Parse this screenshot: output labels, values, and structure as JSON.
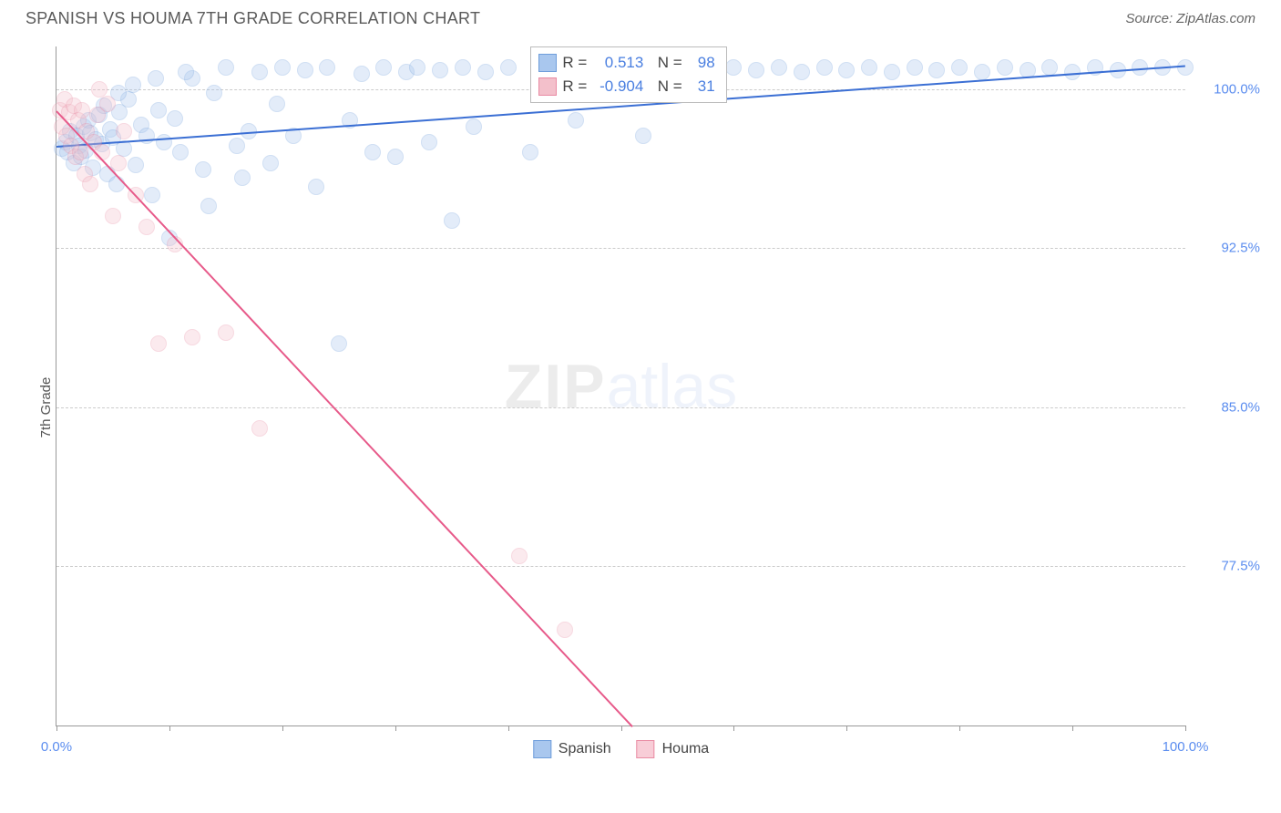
{
  "title": "SPANISH VS HOUMA 7TH GRADE CORRELATION CHART",
  "source": "Source: ZipAtlas.com",
  "ylabel": "7th Grade",
  "watermark_zip": "ZIP",
  "watermark_atlas": "atlas",
  "chart": {
    "type": "scatter",
    "background_color": "#ffffff",
    "grid_color": "#cccccc",
    "axis_color": "#999999",
    "label_color": "#5b8def",
    "xlim": [
      0,
      100
    ],
    "ylim": [
      70,
      102
    ],
    "x_ticks": [
      0,
      10,
      20,
      30,
      40,
      50,
      60,
      70,
      80,
      90,
      100
    ],
    "x_tick_labels": {
      "0": "0.0%",
      "100": "100.0%"
    },
    "y_gridlines": [
      77.5,
      85.0,
      92.5,
      100.0
    ],
    "y_tick_labels": {
      "77.5": "77.5%",
      "85.0": "85.0%",
      "92.5": "92.5%",
      "100.0": "100.0%"
    },
    "marker_radius": 9,
    "marker_opacity": 0.32,
    "series": [
      {
        "name": "Spanish",
        "color_fill": "#a9c7ee",
        "color_stroke": "#6f9edb",
        "trend_color": "#3b6fd4",
        "R": "0.513",
        "N": "98",
        "trend": {
          "x1": 0,
          "y1": 97.3,
          "x2": 100,
          "y2": 101.1
        },
        "points": [
          [
            0.5,
            97.2
          ],
          [
            0.8,
            97.5
          ],
          [
            1.0,
            97.0
          ],
          [
            1.2,
            98.0
          ],
          [
            1.5,
            96.5
          ],
          [
            1.8,
            97.8
          ],
          [
            2.0,
            97.3
          ],
          [
            2.2,
            96.8
          ],
          [
            2.4,
            98.2
          ],
          [
            2.6,
            97.1
          ],
          [
            2.8,
            98.5
          ],
          [
            3.0,
            97.9
          ],
          [
            3.2,
            96.3
          ],
          [
            3.5,
            97.6
          ],
          [
            3.8,
            98.8
          ],
          [
            4.0,
            97.4
          ],
          [
            4.2,
            99.2
          ],
          [
            4.5,
            96.0
          ],
          [
            4.8,
            98.1
          ],
          [
            5.0,
            97.7
          ],
          [
            5.3,
            95.5
          ],
          [
            5.6,
            98.9
          ],
          [
            6.0,
            97.2
          ],
          [
            6.4,
            99.5
          ],
          [
            7.0,
            96.4
          ],
          [
            7.5,
            98.3
          ],
          [
            8.0,
            97.8
          ],
          [
            8.5,
            95.0
          ],
          [
            9.0,
            99.0
          ],
          [
            9.5,
            97.5
          ],
          [
            10.0,
            93.0
          ],
          [
            10.5,
            98.6
          ],
          [
            11.0,
            97.0
          ],
          [
            12.0,
            100.5
          ],
          [
            13.0,
            96.2
          ],
          [
            14.0,
            99.8
          ],
          [
            15.0,
            101.0
          ],
          [
            16.0,
            97.3
          ],
          [
            17.0,
            98.0
          ],
          [
            18.0,
            100.8
          ],
          [
            19.0,
            96.5
          ],
          [
            20.0,
            101.0
          ],
          [
            21.0,
            97.8
          ],
          [
            22.0,
            100.9
          ],
          [
            23.0,
            95.4
          ],
          [
            24.0,
            101.0
          ],
          [
            25.0,
            88.0
          ],
          [
            26.0,
            98.5
          ],
          [
            27.0,
            100.7
          ],
          [
            28.0,
            97.0
          ],
          [
            29.0,
            101.0
          ],
          [
            30.0,
            96.8
          ],
          [
            31.0,
            100.8
          ],
          [
            32.0,
            101.0
          ],
          [
            33.0,
            97.5
          ],
          [
            34.0,
            100.9
          ],
          [
            35.0,
            93.8
          ],
          [
            36.0,
            101.0
          ],
          [
            37.0,
            98.2
          ],
          [
            38.0,
            100.8
          ],
          [
            40.0,
            101.0
          ],
          [
            42.0,
            97.0
          ],
          [
            44.0,
            100.9
          ],
          [
            46.0,
            98.5
          ],
          [
            48.0,
            101.0
          ],
          [
            50.0,
            100.8
          ],
          [
            52.0,
            97.8
          ],
          [
            54.0,
            101.0
          ],
          [
            56.0,
            100.9
          ],
          [
            58.0,
            100.8
          ],
          [
            60.0,
            101.0
          ],
          [
            62.0,
            100.9
          ],
          [
            64.0,
            101.0
          ],
          [
            66.0,
            100.8
          ],
          [
            68.0,
            101.0
          ],
          [
            70.0,
            100.9
          ],
          [
            72.0,
            101.0
          ],
          [
            74.0,
            100.8
          ],
          [
            76.0,
            101.0
          ],
          [
            78.0,
            100.9
          ],
          [
            80.0,
            101.0
          ],
          [
            82.0,
            100.8
          ],
          [
            84.0,
            101.0
          ],
          [
            86.0,
            100.9
          ],
          [
            88.0,
            101.0
          ],
          [
            90.0,
            100.8
          ],
          [
            92.0,
            101.0
          ],
          [
            94.0,
            100.9
          ],
          [
            96.0,
            101.0
          ],
          [
            98.0,
            101.0
          ],
          [
            100.0,
            101.0
          ],
          [
            5.5,
            99.8
          ],
          [
            6.8,
            100.2
          ],
          [
            8.8,
            100.5
          ],
          [
            11.5,
            100.8
          ],
          [
            13.5,
            94.5
          ],
          [
            16.5,
            95.8
          ],
          [
            19.5,
            99.3
          ]
        ]
      },
      {
        "name": "Houma",
        "color_fill": "#f3c0cb",
        "color_stroke": "#e98ba3",
        "trend_color": "#e75a8a",
        "R": "-0.904",
        "N": "31",
        "trend": {
          "x1": 0,
          "y1": 99.0,
          "x2": 51,
          "y2": 70.0
        },
        "points": [
          [
            0.3,
            99.0
          ],
          [
            0.5,
            98.2
          ],
          [
            0.7,
            99.5
          ],
          [
            0.9,
            97.8
          ],
          [
            1.1,
            98.9
          ],
          [
            1.3,
            97.3
          ],
          [
            1.5,
            99.2
          ],
          [
            1.7,
            96.8
          ],
          [
            1.9,
            98.5
          ],
          [
            2.1,
            97.0
          ],
          [
            2.3,
            99.0
          ],
          [
            2.5,
            96.0
          ],
          [
            2.7,
            98.0
          ],
          [
            3.0,
            95.5
          ],
          [
            3.3,
            97.5
          ],
          [
            3.6,
            98.8
          ],
          [
            4.0,
            97.0
          ],
          [
            4.5,
            99.3
          ],
          [
            5.0,
            94.0
          ],
          [
            5.5,
            96.5
          ],
          [
            6.0,
            98.0
          ],
          [
            7.0,
            95.0
          ],
          [
            8.0,
            93.5
          ],
          [
            9.0,
            88.0
          ],
          [
            10.5,
            92.7
          ],
          [
            12.0,
            88.3
          ],
          [
            15.0,
            88.5
          ],
          [
            18.0,
            84.0
          ],
          [
            41.0,
            78.0
          ],
          [
            45.0,
            74.5
          ],
          [
            3.8,
            100.0
          ]
        ]
      }
    ],
    "legend": [
      {
        "label": "Spanish",
        "fill": "#a9c7ee",
        "stroke": "#6f9edb"
      },
      {
        "label": "Houma",
        "fill": "#f8cdd7",
        "stroke": "#e98ba3"
      }
    ]
  }
}
